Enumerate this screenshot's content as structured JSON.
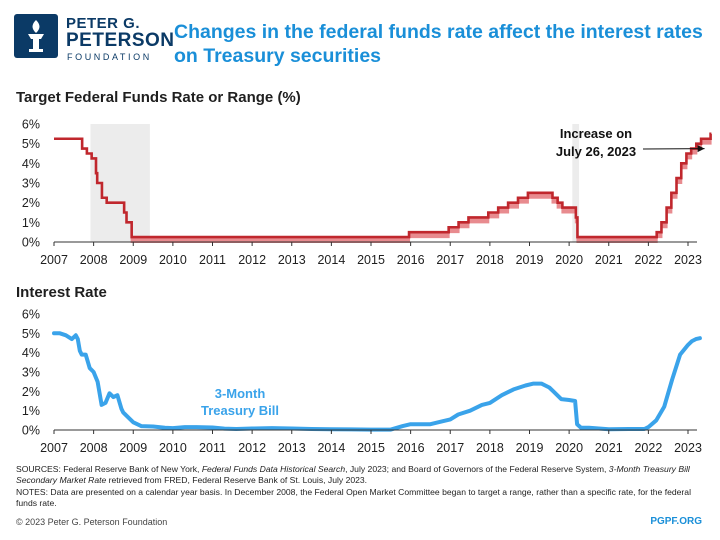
{
  "header": {
    "logo_line1": "PETER G.",
    "logo_line2": "PETERSON",
    "logo_line3": "FOUNDATION",
    "title": "Changes in the federal funds rate affect the interest rates on Treasury securities"
  },
  "colors": {
    "title": "#1a8fd8",
    "fed_funds_line": "#c0272d",
    "fed_funds_band": "#e88b8f",
    "treasury_line": "#3aa3ea",
    "recession_shade": "#ececec",
    "logo": "#0b3a66"
  },
  "chart_data": [
    {
      "type": "line",
      "title": "Target Federal Funds Rate or Range (%)",
      "x_ticks": [
        "2007",
        "2008",
        "2009",
        "2010",
        "2011",
        "2012",
        "2013",
        "2014",
        "2015",
        "2016",
        "2017",
        "2018",
        "2019",
        "2020",
        "2021",
        "2022",
        "2023"
      ],
      "y_ticks": [
        "0%",
        "1%",
        "2%",
        "3%",
        "4%",
        "5%",
        "6%"
      ],
      "xlim": [
        2007.0,
        2023.3
      ],
      "ylim": [
        0,
        6
      ],
      "grid": false,
      "recession_shading": [
        [
          2007.92,
          2009.42
        ],
        [
          2020.08,
          2020.25
        ]
      ],
      "annotation": {
        "line1": "Increase on",
        "line2": "July 26, 2023",
        "x": 2023.57,
        "y": 4.75
      },
      "series": [
        {
          "style": "range",
          "points": [
            {
              "x": 2007.0,
              "upper": 5.25,
              "lower": 5.25
            },
            {
              "x": 2007.71,
              "upper": 4.75,
              "lower": 4.75
            },
            {
              "x": 2007.83,
              "upper": 4.5,
              "lower": 4.5
            },
            {
              "x": 2007.95,
              "upper": 4.25,
              "lower": 4.25
            },
            {
              "x": 2008.06,
              "upper": 3.5,
              "lower": 3.5
            },
            {
              "x": 2008.09,
              "upper": 3.0,
              "lower": 3.0
            },
            {
              "x": 2008.21,
              "upper": 2.25,
              "lower": 2.25
            },
            {
              "x": 2008.33,
              "upper": 2.0,
              "lower": 2.0
            },
            {
              "x": 2008.77,
              "upper": 1.5,
              "lower": 1.5
            },
            {
              "x": 2008.83,
              "upper": 1.0,
              "lower": 1.0
            },
            {
              "x": 2008.96,
              "upper": 0.25,
              "lower": 0.0
            },
            {
              "x": 2015.96,
              "upper": 0.5,
              "lower": 0.25
            },
            {
              "x": 2016.96,
              "upper": 0.75,
              "lower": 0.5
            },
            {
              "x": 2017.21,
              "upper": 1.0,
              "lower": 0.75
            },
            {
              "x": 2017.46,
              "upper": 1.25,
              "lower": 1.0
            },
            {
              "x": 2017.96,
              "upper": 1.5,
              "lower": 1.25
            },
            {
              "x": 2018.21,
              "upper": 1.75,
              "lower": 1.5
            },
            {
              "x": 2018.46,
              "upper": 2.0,
              "lower": 1.75
            },
            {
              "x": 2018.71,
              "upper": 2.25,
              "lower": 2.0
            },
            {
              "x": 2018.96,
              "upper": 2.5,
              "lower": 2.25
            },
            {
              "x": 2019.58,
              "upper": 2.25,
              "lower": 2.0
            },
            {
              "x": 2019.71,
              "upper": 2.0,
              "lower": 1.75
            },
            {
              "x": 2019.83,
              "upper": 1.75,
              "lower": 1.5
            },
            {
              "x": 2020.17,
              "upper": 1.25,
              "lower": 1.0
            },
            {
              "x": 2020.21,
              "upper": 0.25,
              "lower": 0.0
            },
            {
              "x": 2022.21,
              "upper": 0.5,
              "lower": 0.25
            },
            {
              "x": 2022.33,
              "upper": 1.0,
              "lower": 0.75
            },
            {
              "x": 2022.46,
              "upper": 1.75,
              "lower": 1.5
            },
            {
              "x": 2022.58,
              "upper": 2.5,
              "lower": 2.25
            },
            {
              "x": 2022.71,
              "upper": 3.25,
              "lower": 3.0
            },
            {
              "x": 2022.83,
              "upper": 4.0,
              "lower": 3.75
            },
            {
              "x": 2022.96,
              "upper": 4.5,
              "lower": 4.25
            },
            {
              "x": 2023.08,
              "upper": 4.75,
              "lower": 4.5
            },
            {
              "x": 2023.21,
              "upper": 5.0,
              "lower": 4.75
            },
            {
              "x": 2023.33,
              "upper": 5.25,
              "lower": 5.0
            },
            {
              "x": 2023.46,
              "upper": 5.25,
              "lower": 5.0
            },
            {
              "x": 2023.57,
              "upper": 5.5,
              "lower": 5.25
            }
          ]
        }
      ]
    },
    {
      "type": "line",
      "title": "Interest Rate",
      "x_ticks": [
        "2007",
        "2008",
        "2009",
        "2010",
        "2011",
        "2012",
        "2013",
        "2014",
        "2015",
        "2016",
        "2017",
        "2018",
        "2019",
        "2020",
        "2021",
        "2022",
        "2023"
      ],
      "y_ticks": [
        "0%",
        "1%",
        "2%",
        "3%",
        "4%",
        "5%",
        "6%"
      ],
      "xlim": [
        2007.0,
        2023.3
      ],
      "ylim": [
        0,
        6
      ],
      "grid": false,
      "series": [
        {
          "name": "3-Month Treasury Bill",
          "label_line1": "3-Month",
          "label_line2": "Treasury Bill",
          "x": [
            2007.0,
            2007.15,
            2007.3,
            2007.45,
            2007.55,
            2007.6,
            2007.65,
            2007.7,
            2007.8,
            2007.9,
            2008.0,
            2008.1,
            2008.2,
            2008.3,
            2008.4,
            2008.5,
            2008.6,
            2008.7,
            2008.75,
            2008.8,
            2008.9,
            2009.0,
            2009.2,
            2009.5,
            2009.8,
            2010.0,
            2010.3,
            2010.6,
            2011.0,
            2011.3,
            2011.6,
            2012.0,
            2012.5,
            2013.0,
            2013.5,
            2014.0,
            2014.5,
            2015.0,
            2015.5,
            2015.8,
            2016.0,
            2016.2,
            2016.5,
            2016.8,
            2017.0,
            2017.2,
            2017.5,
            2017.8,
            2018.0,
            2018.3,
            2018.6,
            2018.9,
            2019.1,
            2019.3,
            2019.5,
            2019.6,
            2019.8,
            2020.0,
            2020.15,
            2020.2,
            2020.3,
            2020.5,
            2021.0,
            2021.5,
            2021.9,
            2022.0,
            2022.2,
            2022.4,
            2022.6,
            2022.8,
            2023.0,
            2023.1,
            2023.2,
            2023.3
          ],
          "y": [
            5.0,
            5.0,
            4.9,
            4.7,
            4.9,
            4.7,
            4.1,
            3.9,
            3.9,
            3.2,
            3.0,
            2.5,
            1.3,
            1.4,
            1.9,
            1.7,
            1.8,
            1.1,
            0.9,
            0.8,
            0.6,
            0.4,
            0.2,
            0.18,
            0.12,
            0.1,
            0.15,
            0.15,
            0.13,
            0.07,
            0.05,
            0.08,
            0.1,
            0.08,
            0.05,
            0.04,
            0.03,
            0.02,
            0.02,
            0.2,
            0.3,
            0.3,
            0.3,
            0.45,
            0.55,
            0.8,
            1.0,
            1.3,
            1.4,
            1.8,
            2.1,
            2.3,
            2.4,
            2.4,
            2.2,
            2.0,
            1.6,
            1.55,
            1.5,
            0.3,
            0.12,
            0.12,
            0.04,
            0.05,
            0.05,
            0.15,
            0.5,
            1.2,
            2.6,
            3.9,
            4.4,
            4.6,
            4.7,
            4.75
          ]
        }
      ]
    }
  ],
  "footer": {
    "sources_lead": "SOURCES: Federal Reserve Bank of New York, ",
    "sources_title1": "Federal Funds Data Historical Search",
    "sources_mid": ", July 2023; and Board of Governors of the Federal Reserve System, ",
    "sources_title2": "3-Month Treasury Bill Secondary Market Rate",
    "sources_tail": " retrieved from FRED, Federal Reserve Bank of St. Louis, July 2023.",
    "notes": "NOTES: Data are presented on a calendar year basis. In December 2008, the Federal Open Market Committee began to target a range, rather than a specific rate, for the federal funds rate.",
    "copyright": "© 2023 Peter G. Peterson Foundation",
    "site": "PGPF.ORG"
  }
}
